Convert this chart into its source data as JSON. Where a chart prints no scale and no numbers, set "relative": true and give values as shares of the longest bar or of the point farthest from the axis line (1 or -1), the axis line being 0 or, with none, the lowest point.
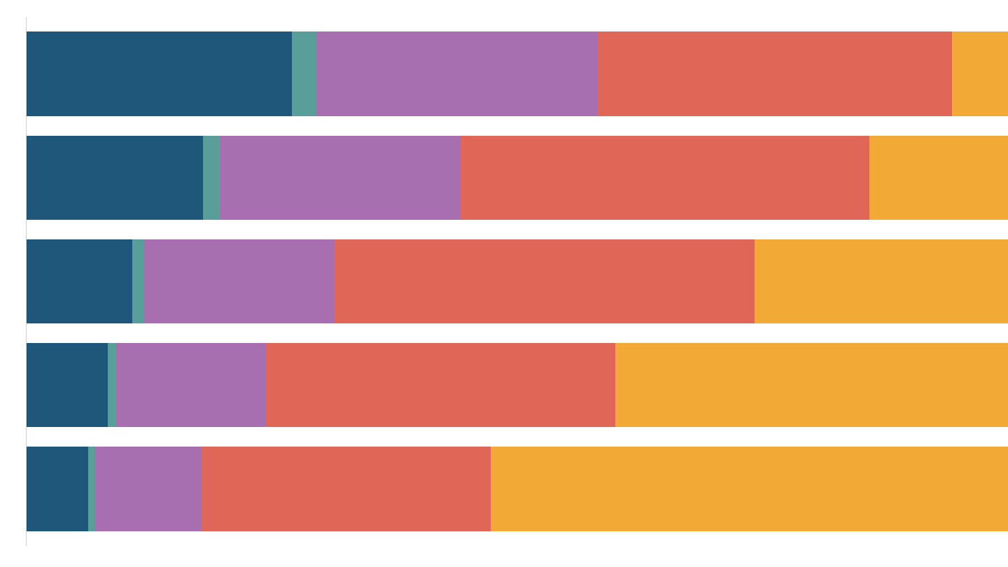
{
  "chart_data": {
    "type": "bar",
    "orientation": "horizontal",
    "stacked": true,
    "relative": true,
    "categories": [
      null,
      null,
      null,
      null,
      null
    ],
    "series": [
      {
        "color": "#1f577b",
        "values": [
          0.27,
          0.18,
          0.108,
          0.083,
          0.063
        ]
      },
      {
        "color": "#5a9e9a",
        "values": [
          0.025,
          0.017,
          0.011,
          0.008,
          0.006
        ]
      },
      {
        "color": "#a76fb0",
        "values": [
          0.286,
          0.245,
          0.195,
          0.153,
          0.109
        ]
      },
      {
        "color": "#e06658",
        "values": [
          0.362,
          0.417,
          0.428,
          0.356,
          0.295
        ]
      },
      {
        "color": "#f2a935",
        "values": [
          0.057,
          0.141,
          0.258,
          0.4,
          0.527
        ]
      }
    ]
  }
}
